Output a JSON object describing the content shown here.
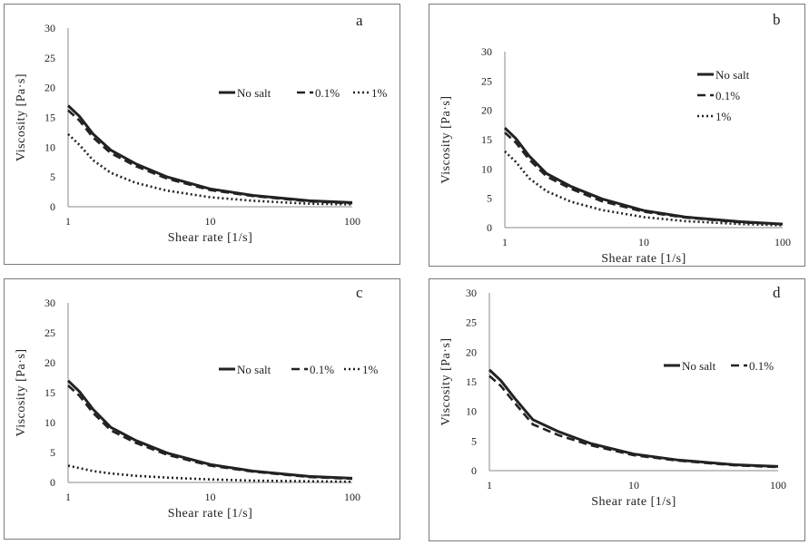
{
  "chart_data": [
    {
      "type": "line",
      "panel_label": "a",
      "xlabel": "Shear rate [1/s]",
      "ylabel": "Viscosity [Pa·s]",
      "xscale": "log",
      "xlim": [
        1,
        100
      ],
      "ylim": [
        0,
        30
      ],
      "xticks": [
        1,
        10,
        100
      ],
      "yticks": [
        0,
        5,
        10,
        15,
        20,
        25,
        30
      ],
      "grid": false,
      "legend_layout": "horizontal",
      "x": [
        1,
        1.2,
        1.5,
        2,
        3,
        5,
        10,
        20,
        50,
        100
      ],
      "series": [
        {
          "name": "No salt",
          "style": "solid",
          "values": [
            17,
            15.2,
            12.2,
            9.5,
            7.2,
            5.0,
            3.0,
            1.9,
            1.0,
            0.7
          ]
        },
        {
          "name": "0.1%",
          "style": "dashed",
          "values": [
            16.2,
            14.5,
            11.6,
            9.0,
            6.8,
            4.7,
            2.8,
            1.8,
            0.9,
            0.6
          ]
        },
        {
          "name": "1%",
          "style": "dotted",
          "values": [
            12.2,
            10.4,
            7.8,
            5.7,
            4.0,
            2.7,
            1.6,
            1.0,
            0.5,
            0.4
          ]
        }
      ]
    },
    {
      "type": "line",
      "panel_label": "b",
      "xlabel": "Shear rate [1/s]",
      "ylabel": "Viscosity [Pa·s]",
      "xscale": "log",
      "xlim": [
        1,
        100
      ],
      "ylim": [
        0,
        30
      ],
      "xticks": [
        1,
        10,
        100
      ],
      "yticks": [
        0,
        5,
        10,
        15,
        20,
        25,
        30
      ],
      "grid": false,
      "legend_layout": "vertical",
      "x": [
        1,
        1.2,
        1.5,
        2,
        3,
        5,
        10,
        20,
        50,
        100
      ],
      "series": [
        {
          "name": "No salt",
          "style": "solid",
          "values": [
            17,
            15.2,
            12.2,
            9.2,
            7.0,
            4.9,
            2.9,
            1.8,
            1.0,
            0.6
          ]
        },
        {
          "name": "0.1%",
          "style": "dashed",
          "values": [
            16.2,
            14.5,
            11.6,
            8.7,
            6.6,
            4.5,
            2.7,
            1.7,
            0.9,
            0.6
          ]
        },
        {
          "name": "1%",
          "style": "dotted",
          "values": [
            13,
            11.2,
            8.4,
            6.2,
            4.4,
            3.0,
            1.8,
            1.1,
            0.6,
            0.4
          ]
        }
      ]
    },
    {
      "type": "line",
      "panel_label": "c",
      "xlabel": "Shear rate [1/s]",
      "ylabel": "Viscosity [Pa·s]",
      "xscale": "log",
      "xlim": [
        1,
        100
      ],
      "ylim": [
        0,
        30
      ],
      "xticks": [
        1,
        10,
        100
      ],
      "yticks": [
        0,
        5,
        10,
        15,
        20,
        25,
        30
      ],
      "grid": false,
      "legend_layout": "horizontal",
      "x": [
        1,
        1.2,
        1.5,
        2,
        3,
        5,
        10,
        20,
        50,
        100
      ],
      "series": [
        {
          "name": "No salt",
          "style": "solid",
          "values": [
            17,
            15.2,
            12.2,
            9.2,
            7.0,
            4.9,
            3.0,
            1.9,
            1.0,
            0.7
          ]
        },
        {
          "name": "0.1%",
          "style": "dashed",
          "values": [
            16.2,
            14.5,
            11.6,
            8.7,
            6.6,
            4.6,
            2.8,
            1.8,
            0.9,
            0.6
          ]
        },
        {
          "name": "1%",
          "style": "dotted",
          "values": [
            2.8,
            2.4,
            1.9,
            1.5,
            1.1,
            0.8,
            0.5,
            0.3,
            0.2,
            0.1
          ]
        }
      ]
    },
    {
      "type": "line",
      "panel_label": "d",
      "xlabel": "Shear rate [1/s]",
      "ylabel": "Viscosity [Pa·s]",
      "xscale": "log",
      "xlim": [
        1,
        100
      ],
      "ylim": [
        0,
        30
      ],
      "xticks": [
        1,
        10,
        100
      ],
      "yticks": [
        0,
        5,
        10,
        15,
        20,
        25,
        30
      ],
      "grid": false,
      "legend_layout": "horizontal",
      "x": [
        1,
        1.2,
        1.5,
        2,
        3,
        5,
        10,
        20,
        50,
        100
      ],
      "series": [
        {
          "name": "No salt",
          "style": "solid",
          "values": [
            17,
            15.2,
            12.2,
            8.6,
            6.6,
            4.6,
            2.8,
            1.8,
            1.0,
            0.7
          ]
        },
        {
          "name": "0.1%",
          "style": "dashed",
          "values": [
            16,
            14.3,
            11.4,
            7.8,
            6.0,
            4.3,
            2.6,
            1.7,
            0.9,
            0.6
          ]
        }
      ]
    }
  ]
}
